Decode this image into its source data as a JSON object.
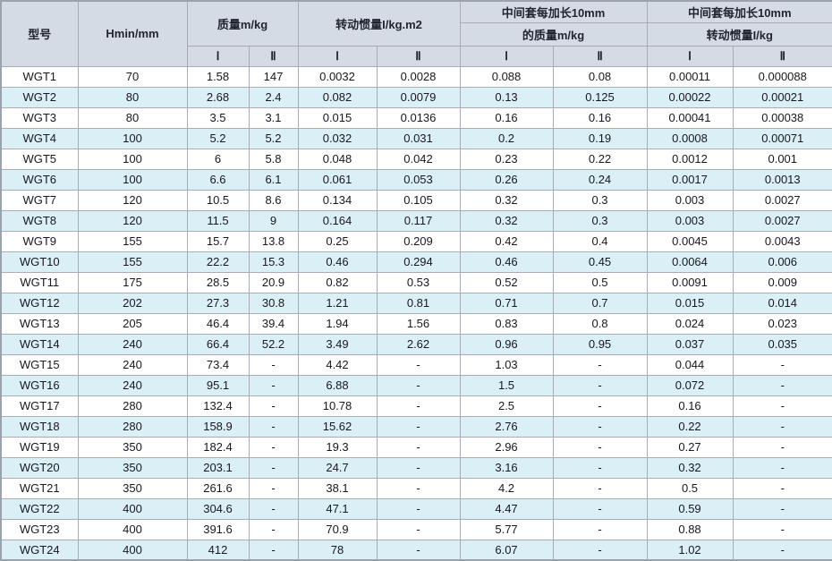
{
  "table": {
    "headers": {
      "col_model": "型号",
      "col_hmin": "Hmin/mm",
      "group_mass": "质量m/kg",
      "group_inertia": "转动惯量I/kg.m2",
      "group_ext_mass_line1": "中间套每加长10mm",
      "group_ext_mass_line2": "的质量m/kg",
      "group_ext_inertia_line1": "中间套每加长10mm",
      "group_ext_inertia_line2": "转动惯量I/kg",
      "sub_I": "Ⅰ",
      "sub_II": "Ⅱ"
    },
    "column_keys": [
      "model",
      "hmin",
      "mass_i",
      "mass_ii",
      "inertia_i",
      "inertia_ii",
      "ext_mass_i",
      "ext_mass_ii",
      "ext_inertia_i",
      "ext_inertia_ii"
    ],
    "rows": [
      [
        "WGT1",
        "70",
        "1.58",
        "147",
        "0.0032",
        "0.0028",
        "0.088",
        "0.08",
        "0.00011",
        "0.000088"
      ],
      [
        "WGT2",
        "80",
        "2.68",
        "2.4",
        "0.082",
        "0.0079",
        "0.13",
        "0.125",
        "0.00022",
        "0.00021"
      ],
      [
        "WGT3",
        "80",
        "3.5",
        "3.1",
        "0.015",
        "0.0136",
        "0.16",
        "0.16",
        "0.00041",
        "0.00038"
      ],
      [
        "WGT4",
        "100",
        "5.2",
        "5.2",
        "0.032",
        "0.031",
        "0.2",
        "0.19",
        "0.0008",
        "0.00071"
      ],
      [
        "WGT5",
        "100",
        "6",
        "5.8",
        "0.048",
        "0.042",
        "0.23",
        "0.22",
        "0.0012",
        "0.001"
      ],
      [
        "WGT6",
        "100",
        "6.6",
        "6.1",
        "0.061",
        "0.053",
        "0.26",
        "0.24",
        "0.0017",
        "0.0013"
      ],
      [
        "WGT7",
        "120",
        "10.5",
        "8.6",
        "0.134",
        "0.105",
        "0.32",
        "0.3",
        "0.003",
        "0.0027"
      ],
      [
        "WGT8",
        "120",
        "11.5",
        "9",
        "0.164",
        "0.117",
        "0.32",
        "0.3",
        "0.003",
        "0.0027"
      ],
      [
        "WGT9",
        "155",
        "15.7",
        "13.8",
        "0.25",
        "0.209",
        "0.42",
        "0.4",
        "0.0045",
        "0.0043"
      ],
      [
        "WGT10",
        "155",
        "22.2",
        "15.3",
        "0.46",
        "0.294",
        "0.46",
        "0.45",
        "0.0064",
        "0.006"
      ],
      [
        "WGT11",
        "175",
        "28.5",
        "20.9",
        "0.82",
        "0.53",
        "0.52",
        "0.5",
        "0.0091",
        "0.009"
      ],
      [
        "WGT12",
        "202",
        "27.3",
        "30.8",
        "1.21",
        "0.81",
        "0.71",
        "0.7",
        "0.015",
        "0.014"
      ],
      [
        "WGT13",
        "205",
        "46.4",
        "39.4",
        "1.94",
        "1.56",
        "0.83",
        "0.8",
        "0.024",
        "0.023"
      ],
      [
        "WGT14",
        "240",
        "66.4",
        "52.2",
        "3.49",
        "2.62",
        "0.96",
        "0.95",
        "0.037",
        "0.035"
      ],
      [
        "WGT15",
        "240",
        "73.4",
        "-",
        "4.42",
        "-",
        "1.03",
        "-",
        "0.044",
        "-"
      ],
      [
        "WGT16",
        "240",
        "95.1",
        "-",
        "6.88",
        "-",
        "1.5",
        "-",
        "0.072",
        "-"
      ],
      [
        "WGT17",
        "280",
        "132.4",
        "-",
        "10.78",
        "-",
        "2.5",
        "-",
        "0.16",
        "-"
      ],
      [
        "WGT18",
        "280",
        "158.9",
        "-",
        "15.62",
        "-",
        "2.76",
        "-",
        "0.22",
        "-"
      ],
      [
        "WGT19",
        "350",
        "182.4",
        "-",
        "19.3",
        "-",
        "2.96",
        "-",
        "0.27",
        "-"
      ],
      [
        "WGT20",
        "350",
        "203.1",
        "-",
        "24.7",
        "-",
        "3.16",
        "-",
        "0.32",
        "-"
      ],
      [
        "WGT21",
        "350",
        "261.6",
        "-",
        "38.1",
        "-",
        "4.2",
        "-",
        "0.5",
        "-"
      ],
      [
        "WGT22",
        "400",
        "304.6",
        "-",
        "47.1",
        "-",
        "4.47",
        "-",
        "0.59",
        "-"
      ],
      [
        "WGT23",
        "400",
        "391.6",
        "-",
        "70.9",
        "-",
        "5.77",
        "-",
        "0.88",
        "-"
      ],
      [
        "WGT24",
        "400",
        "412",
        "-",
        "78",
        "-",
        "6.07",
        "-",
        "1.02",
        "-"
      ]
    ]
  },
  "colors": {
    "header_bg": "#d5dbe4",
    "row_alt_bg": "#dbeff6",
    "row_bg": "#ffffff",
    "grid_border": "#a8adb5",
    "outer_border": "#9aa3ad",
    "header_light_separator": "#f2f4f7",
    "text": "#17181f"
  }
}
